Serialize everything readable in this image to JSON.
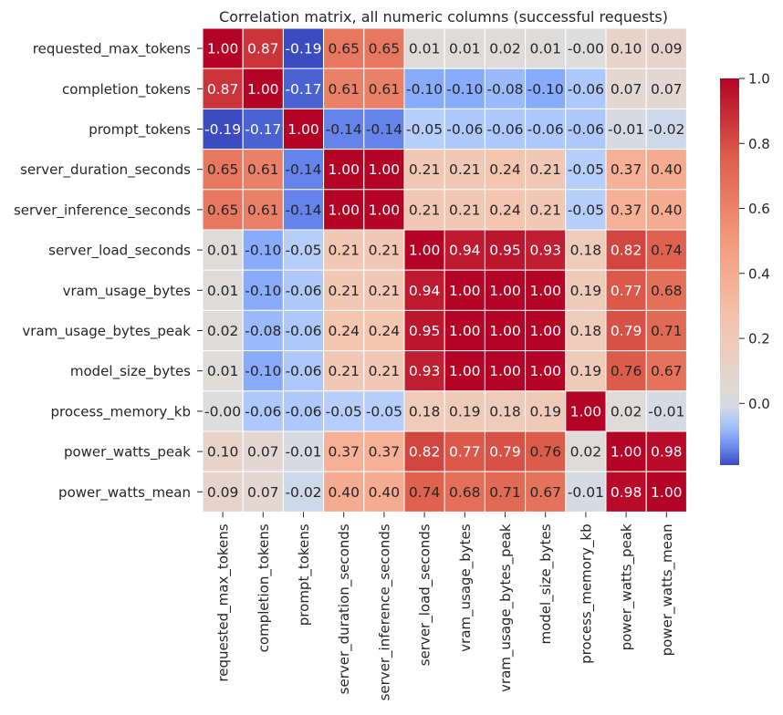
{
  "chart_data": {
    "type": "heatmap",
    "title": "Correlation matrix, all numeric columns (successful requests)",
    "xlabel": "",
    "ylabel": "",
    "rows": [
      "requested_max_tokens",
      "completion_tokens",
      "prompt_tokens",
      "server_duration_seconds",
      "server_inference_seconds",
      "server_load_seconds",
      "vram_usage_bytes",
      "vram_usage_bytes_peak",
      "model_size_bytes",
      "process_memory_kb",
      "power_watts_peak",
      "power_watts_mean"
    ],
    "columns": [
      "requested_max_tokens",
      "completion_tokens",
      "prompt_tokens",
      "server_duration_seconds",
      "server_inference_seconds",
      "server_load_seconds",
      "vram_usage_bytes",
      "vram_usage_bytes_peak",
      "model_size_bytes",
      "process_memory_kb",
      "power_watts_peak",
      "power_watts_mean"
    ],
    "values": [
      [
        1.0,
        0.87,
        -0.19,
        0.65,
        0.65,
        0.01,
        0.01,
        0.02,
        0.01,
        -0.0,
        0.1,
        0.09
      ],
      [
        0.87,
        1.0,
        -0.17,
        0.61,
        0.61,
        -0.1,
        -0.1,
        -0.08,
        -0.1,
        -0.06,
        0.07,
        0.07
      ],
      [
        -0.19,
        -0.17,
        1.0,
        -0.14,
        -0.14,
        -0.05,
        -0.06,
        -0.06,
        -0.06,
        -0.06,
        -0.01,
        -0.02
      ],
      [
        0.65,
        0.61,
        -0.14,
        1.0,
        1.0,
        0.21,
        0.21,
        0.24,
        0.21,
        -0.05,
        0.37,
        0.4
      ],
      [
        0.65,
        0.61,
        -0.14,
        1.0,
        1.0,
        0.21,
        0.21,
        0.24,
        0.21,
        -0.05,
        0.37,
        0.4
      ],
      [
        0.01,
        -0.1,
        -0.05,
        0.21,
        0.21,
        1.0,
        0.94,
        0.95,
        0.93,
        0.18,
        0.82,
        0.74
      ],
      [
        0.01,
        -0.1,
        -0.06,
        0.21,
        0.21,
        0.94,
        1.0,
        1.0,
        1.0,
        0.19,
        0.77,
        0.68
      ],
      [
        0.02,
        -0.08,
        -0.06,
        0.24,
        0.24,
        0.95,
        1.0,
        1.0,
        1.0,
        0.18,
        0.79,
        0.71
      ],
      [
        0.01,
        -0.1,
        -0.06,
        0.21,
        0.21,
        0.93,
        1.0,
        1.0,
        1.0,
        0.19,
        0.76,
        0.67
      ],
      [
        -0.0,
        -0.06,
        -0.06,
        -0.05,
        -0.05,
        0.18,
        0.19,
        0.18,
        0.19,
        1.0,
        0.02,
        -0.01
      ],
      [
        0.1,
        0.07,
        -0.01,
        0.37,
        0.37,
        0.82,
        0.77,
        0.79,
        0.76,
        0.02,
        1.0,
        0.98
      ],
      [
        0.09,
        0.07,
        -0.02,
        0.4,
        0.4,
        0.74,
        0.68,
        0.71,
        0.67,
        -0.01,
        0.98,
        1.0
      ]
    ],
    "value_format": "0.00",
    "colormap": "coolwarm",
    "color_center": 0.0,
    "color_range": [
      -0.19,
      1.0
    ],
    "colorbar": {
      "ticks": [
        0.0,
        0.2,
        0.4,
        0.6,
        0.8,
        1.0
      ],
      "tick_labels": [
        "0.0",
        "0.2",
        "0.4",
        "0.6",
        "0.8",
        "1.0"
      ],
      "placement": "right"
    },
    "grid": true,
    "legend": "none"
  }
}
